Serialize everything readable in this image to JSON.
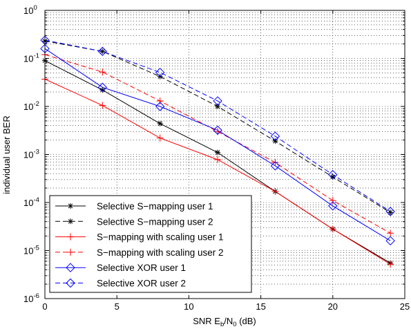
{
  "chart_data": {
    "type": "line",
    "xlabel": {
      "main": "SNR E",
      "sub1": "b",
      "mid": "/N",
      "sub2": "0",
      "tail": " (dB)"
    },
    "ylabel": "individual user BER",
    "xlim": [
      0,
      25
    ],
    "ylim": [
      1e-06,
      1
    ],
    "yscale": "log",
    "grid": "dotted",
    "legend_position": "bottom-left",
    "x_ticks": [
      "0",
      "5",
      "10",
      "15",
      "20",
      "25"
    ],
    "y_ticks": [
      {
        "base": "10",
        "exp": "0"
      },
      {
        "base": "10",
        "exp": "-1"
      },
      {
        "base": "10",
        "exp": "-2"
      },
      {
        "base": "10",
        "exp": "-3"
      },
      {
        "base": "10",
        "exp": "-4"
      },
      {
        "base": "10",
        "exp": "-5"
      },
      {
        "base": "10",
        "exp": "-6"
      }
    ],
    "x": [
      0,
      4,
      8,
      12,
      16,
      20,
      24
    ],
    "series": [
      {
        "name": "Selective S−mapping user 1",
        "color": "#000000",
        "dash": "solid",
        "marker": "asterisk",
        "values": [
          0.09,
          0.022,
          0.0044,
          0.0011,
          0.00017,
          2.8e-05,
          5.5e-06
        ]
      },
      {
        "name": "Selective S−mapping user 2",
        "color": "#000000",
        "dash": "dashed",
        "marker": "asterisk",
        "values": [
          0.23,
          0.14,
          0.042,
          0.01,
          0.0019,
          0.00034,
          6.2e-05
        ]
      },
      {
        "name": "S−mapping with scaling user 1",
        "color": "#ff0000",
        "dash": "solid",
        "marker": "plus",
        "values": [
          0.037,
          0.0105,
          0.0022,
          0.00078,
          0.00017,
          2.8e-05,
          5.2e-06
        ]
      },
      {
        "name": "S−mapping with scaling user 2",
        "color": "#ff0000",
        "dash": "dashed",
        "marker": "plus",
        "values": [
          0.12,
          0.052,
          0.013,
          0.003,
          0.00068,
          0.00011,
          2.3e-05
        ]
      },
      {
        "name": "Selective XOR user 1",
        "color": "#0000ff",
        "dash": "solid",
        "marker": "diamond",
        "values": [
          0.16,
          0.025,
          0.01,
          0.0032,
          0.00058,
          8.5e-05,
          1.6e-05
        ]
      },
      {
        "name": "Selective XOR user 2",
        "color": "#0000ff",
        "dash": "dashed",
        "marker": "diamond",
        "values": [
          0.24,
          0.14,
          0.051,
          0.013,
          0.0024,
          0.00038,
          6.5e-05
        ]
      }
    ]
  }
}
